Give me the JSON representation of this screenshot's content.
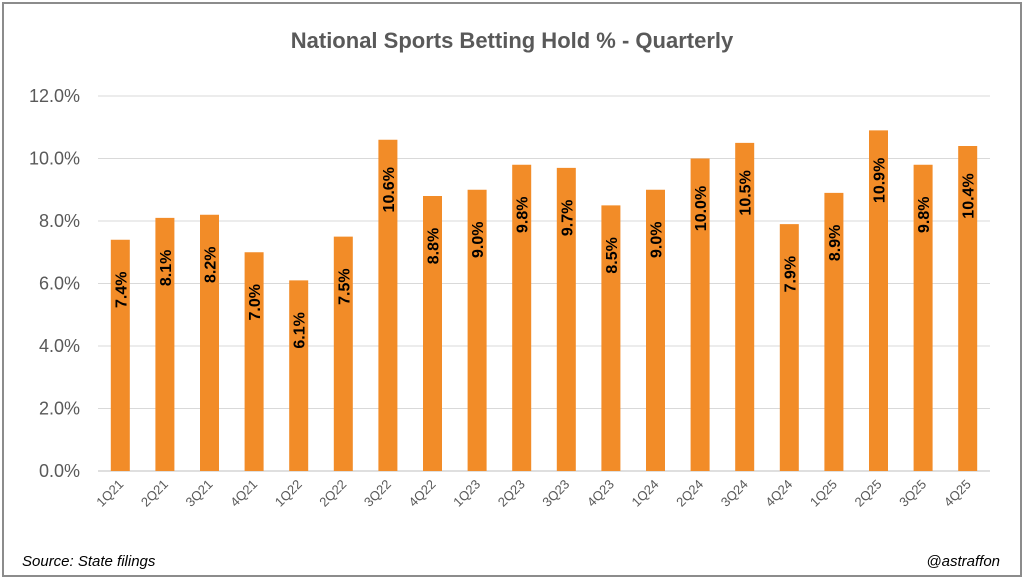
{
  "chart_data": {
    "type": "bar",
    "title": "National Sports Betting Hold % - Quarterly",
    "categories": [
      "1Q21",
      "2Q21",
      "3Q21",
      "4Q21",
      "1Q22",
      "2Q22",
      "3Q22",
      "4Q22",
      "1Q23",
      "2Q23",
      "3Q23",
      "4Q23",
      "1Q24",
      "2Q24",
      "3Q24",
      "4Q24",
      "1Q25",
      "2Q25",
      "3Q25",
      "4Q25"
    ],
    "values": [
      7.4,
      8.1,
      8.2,
      7.0,
      6.1,
      7.5,
      10.6,
      8.8,
      9.0,
      9.8,
      9.7,
      8.5,
      9.0,
      10.0,
      10.5,
      7.9,
      8.9,
      10.9,
      9.8,
      10.4
    ],
    "data_labels": [
      "7.4%",
      "8.1%",
      "8.2%",
      "7.0%",
      "6.1%",
      "7.5%",
      "10.6%",
      "8.8%",
      "9.0%",
      "9.8%",
      "9.7%",
      "8.5%",
      "9.0%",
      "10.0%",
      "10.5%",
      "7.9%",
      "8.9%",
      "10.9%",
      "9.8%",
      "10.4%"
    ],
    "y_tick_labels": [
      "0.0%",
      "2.0%",
      "4.0%",
      "6.0%",
      "8.0%",
      "10.0%",
      "12.0%"
    ],
    "ylim": [
      0,
      12
    ],
    "xlabel": "",
    "ylabel": "",
    "grid": true,
    "bar_color": "#F28C28"
  },
  "footer": {
    "source": "Source: State filings",
    "credit": "@astraffon"
  }
}
